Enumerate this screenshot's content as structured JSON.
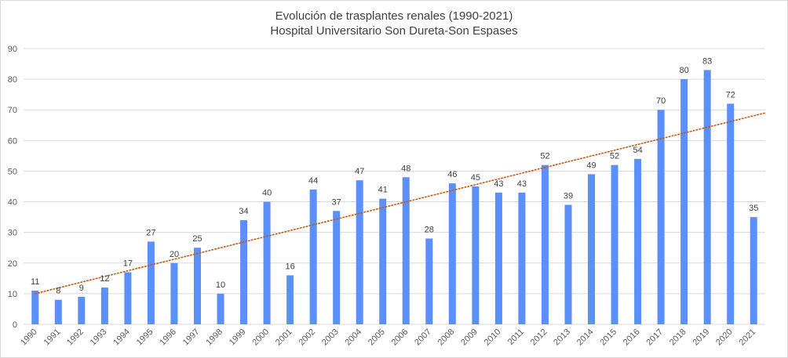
{
  "chart_data": {
    "type": "bar",
    "title": "Evolución de trasplantes renales (1990-2021)",
    "subtitle": "Hospital Universitario Son Dureta-Son Espases",
    "xlabel": "",
    "ylabel": "",
    "ylim": [
      0,
      90
    ],
    "yticks": [
      "0",
      "10",
      "20",
      "30",
      "40",
      "50",
      "60",
      "70",
      "80",
      "90"
    ],
    "grid": true,
    "legend": "none",
    "categories": [
      "1990",
      "1991",
      "1992",
      "1993",
      "1994",
      "1995",
      "1996",
      "1997",
      "1998",
      "1999",
      "2000",
      "2001",
      "2002",
      "2003",
      "2004",
      "2005",
      "2006",
      "2007",
      "2008",
      "2009",
      "2010",
      "2011",
      "2012",
      "2013",
      "2014",
      "2015",
      "2016",
      "2017",
      "2018",
      "2019",
      "2020",
      "2021"
    ],
    "values": [
      11,
      8,
      9,
      12,
      17,
      27,
      20,
      25,
      10,
      34,
      40,
      16,
      44,
      37,
      47,
      41,
      48,
      28,
      46,
      45,
      43,
      43,
      52,
      39,
      49,
      52,
      54,
      70,
      80,
      83,
      72,
      35
    ],
    "data_labels": [
      "11",
      "8",
      "9",
      "12",
      "17",
      "27",
      "20",
      "25",
      "10",
      "34",
      "40",
      "16",
      "44",
      "37",
      "47",
      "41",
      "48",
      "28",
      "46",
      "45",
      "43",
      "43",
      "52",
      "39",
      "49",
      "52",
      "54",
      "70",
      "80",
      "83",
      "72",
      "35"
    ],
    "trendline": {
      "type": "linear",
      "style": "dotted",
      "start_value": 10,
      "end_value": 69
    },
    "colors": {
      "bar": "#5b8ff9",
      "trend": "#c55a11",
      "grid": "#d9d9d9"
    }
  }
}
